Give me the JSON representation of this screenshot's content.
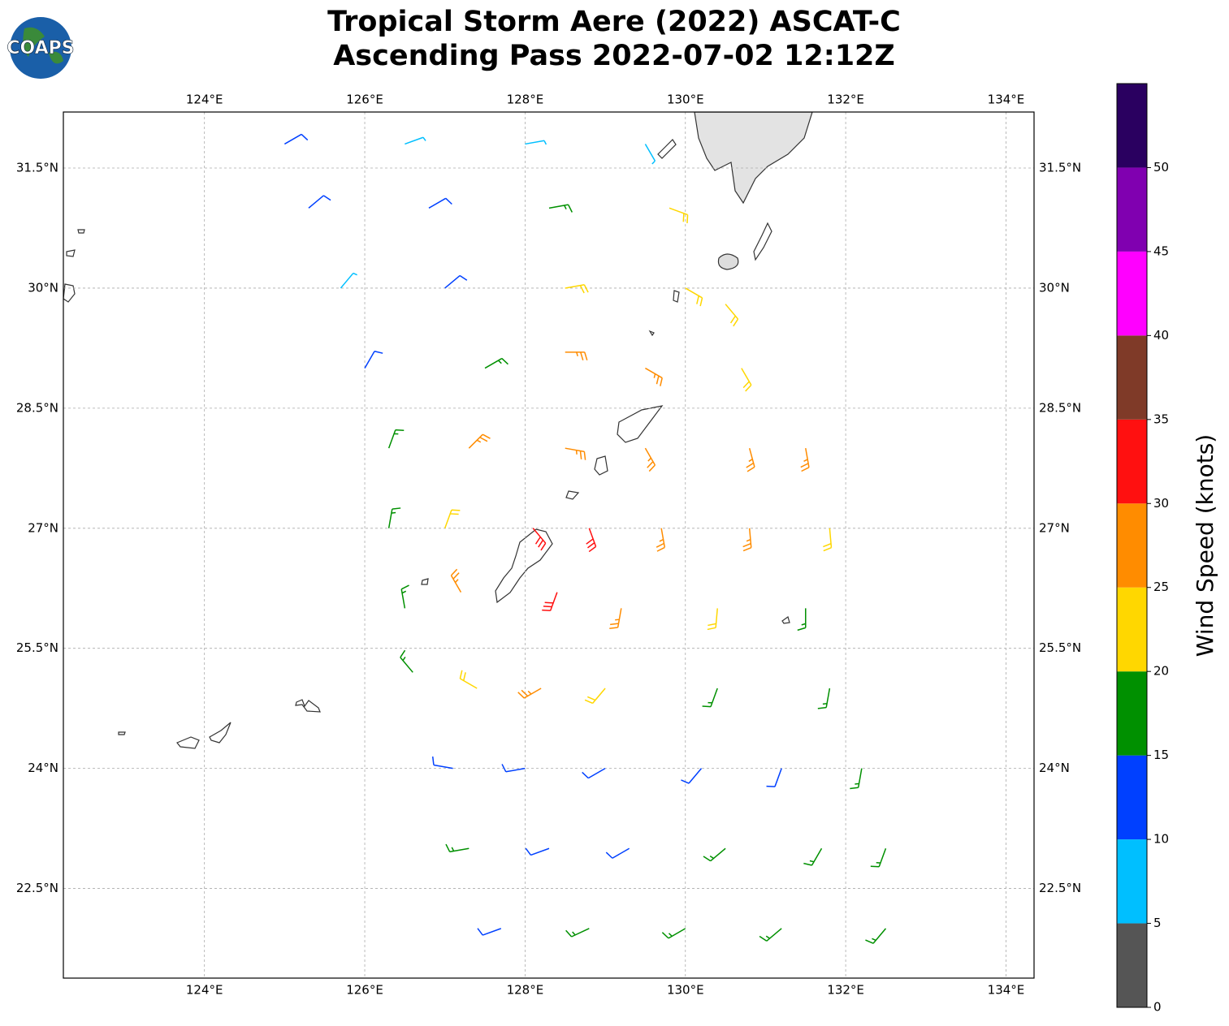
{
  "logo": "COAPS",
  "chart_data": {
    "type": "wind-barbs",
    "title": "Tropical Storm Aere (2022) ASCAT-C",
    "subtitle": "Ascending Pass 2022-07-02 12:12Z",
    "xlim": [
      122.24,
      134.35
    ],
    "ylim": [
      21.38,
      32.2
    ],
    "xticks": [
      {
        "value": 124,
        "label": "124°E"
      },
      {
        "value": 126,
        "label": "126°E"
      },
      {
        "value": 128,
        "label": "128°E"
      },
      {
        "value": 130,
        "label": "130°E"
      },
      {
        "value": 132,
        "label": "132°E"
      },
      {
        "value": 134,
        "label": "134°E"
      }
    ],
    "yticks": [
      {
        "value": 22.5,
        "label": "22.5°N"
      },
      {
        "value": 24,
        "label": "24°N"
      },
      {
        "value": 25.5,
        "label": "25.5°N"
      },
      {
        "value": 27,
        "label": "27°N"
      },
      {
        "value": 28.5,
        "label": "28.5°N"
      },
      {
        "value": 30,
        "label": "30°N"
      },
      {
        "value": 31.5,
        "label": "31.5°N"
      }
    ],
    "grid": true,
    "barbs": {
      "lon": [
        125,
        126.5,
        128,
        129.5,
        125.3,
        126.8,
        128.3,
        129.8,
        125.7,
        127,
        128.5,
        130,
        130.5,
        126,
        127.5,
        128.5,
        129.5,
        130.7,
        126.3,
        127.3,
        128.5,
        129.5,
        130.8,
        131.5,
        126.3,
        127,
        128.1,
        128.8,
        129.7,
        130.8,
        131.8,
        126.5,
        127.2,
        128.4,
        129.2,
        130.4,
        131.5,
        126.6,
        127.4,
        128.2,
        129,
        130.4,
        131.8,
        127.1,
        128,
        129,
        130.2,
        131.2,
        132.2,
        127.3,
        128.3,
        129.3,
        130.5,
        131.7,
        132.5,
        127.7,
        128.8,
        130,
        131.2,
        132.5
      ],
      "lat": [
        31.8,
        31.8,
        31.8,
        31.8,
        31,
        31,
        31,
        31,
        30,
        30,
        30,
        30,
        29.8,
        29,
        29,
        29.2,
        29,
        29,
        28,
        28,
        28,
        28,
        28,
        28,
        27,
        27,
        27,
        27,
        27,
        27,
        27,
        26,
        26.2,
        26.2,
        26,
        26,
        26,
        25.2,
        25,
        25,
        25,
        25,
        25,
        24,
        24,
        24,
        24,
        24,
        24,
        23,
        23,
        23,
        23,
        23,
        23,
        22,
        22,
        22,
        22,
        22
      ],
      "speed": [
        12,
        8,
        8,
        8,
        12,
        12,
        15,
        20,
        8,
        12,
        20,
        22,
        22,
        12,
        18,
        25,
        25,
        22,
        18,
        25,
        28,
        25,
        25,
        25,
        18,
        22,
        33,
        32,
        25,
        25,
        22,
        18,
        25,
        32,
        25,
        20,
        18,
        15,
        22,
        28,
        20,
        18,
        17,
        12,
        12,
        12,
        13,
        12,
        17,
        15,
        12,
        13,
        15,
        17,
        18,
        12,
        15,
        17,
        18,
        18
      ],
      "direction": [
        60,
        70,
        80,
        150,
        50,
        60,
        80,
        110,
        40,
        50,
        80,
        120,
        140,
        30,
        60,
        90,
        120,
        150,
        20,
        45,
        100,
        150,
        165,
        170,
        10,
        20,
        140,
        160,
        170,
        175,
        175,
        350,
        330,
        200,
        190,
        185,
        180,
        320,
        300,
        240,
        220,
        200,
        190,
        280,
        260,
        240,
        220,
        200,
        190,
        260,
        250,
        240,
        230,
        210,
        200,
        250,
        245,
        240,
        230,
        220
      ]
    },
    "colorbar": {
      "label": "Wind Speed (knots)",
      "levels": [
        0,
        5,
        10,
        15,
        20,
        25,
        30,
        35,
        40,
        45,
        50,
        55
      ],
      "colors": [
        "#555555",
        "#00bfff",
        "#0040ff",
        "#009000",
        "#ffd700",
        "#ff8c00",
        "#ff1010",
        "#7f3a28",
        "#ff00ff",
        "#8000b0",
        "#2a0060"
      ],
      "ticks": [
        0,
        5,
        10,
        15,
        20,
        25,
        30,
        35,
        40,
        45,
        50
      ]
    }
  }
}
